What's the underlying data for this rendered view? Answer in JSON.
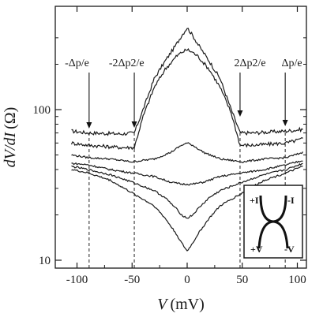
{
  "chart_data": {
    "type": "line",
    "xlabel": "V",
    "xunit": "(mV)",
    "ylabel": "dV/dI",
    "yunit": "(Ω)",
    "xlim": [
      -110,
      110
    ],
    "ylim": [
      10,
      400
    ],
    "yscale": "log",
    "xticks": [
      -100,
      -50,
      0,
      50,
      100
    ],
    "xtick_labels": [
      "-100",
      "-50",
      "0",
      "50",
      "100"
    ],
    "yticks": [
      10,
      100
    ],
    "ytick_labels": [
      "10",
      "100"
    ],
    "grid": false,
    "legend": "none",
    "vlines": [
      {
        "x": -89,
        "label": "-Δp/e",
        "label_x": -100
      },
      {
        "x": -48,
        "label": "-2Δp2/e",
        "label_x": -55
      },
      {
        "x": 48,
        "label": "2Δp2/e",
        "label_x": 57
      },
      {
        "x": 89,
        "label": "Δp/e",
        "label_x": 95
      }
    ],
    "series": [
      {
        "x": [
          -105,
          -90,
          -60,
          -48,
          -40,
          -30,
          -20,
          -10,
          -5,
          0,
          5,
          10,
          20,
          30,
          40,
          48,
          60,
          90,
          105
        ],
        "values": [
          72,
          70,
          69,
          70,
          100,
          160,
          210,
          270,
          310,
          350,
          310,
          270,
          210,
          160,
          100,
          70,
          70,
          72,
          74
        ]
      },
      {
        "x": [
          -105,
          -90,
          -60,
          -48,
          -40,
          -30,
          -20,
          -10,
          -5,
          0,
          5,
          10,
          20,
          30,
          40,
          48,
          60,
          90,
          105
        ],
        "values": [
          60,
          58,
          56,
          56,
          90,
          140,
          185,
          225,
          240,
          250,
          240,
          225,
          185,
          140,
          95,
          58,
          58,
          60,
          64
        ]
      },
      {
        "x": [
          -105,
          -90,
          -70,
          -50,
          -30,
          -15,
          -5,
          0,
          5,
          15,
          30,
          50,
          70,
          90,
          105
        ],
        "values": [
          50,
          48,
          47,
          45,
          47,
          52,
          58,
          60,
          58,
          52,
          47,
          45,
          47,
          48,
          52
        ]
      },
      {
        "x": [
          -105,
          -90,
          -70,
          -50,
          -30,
          -15,
          -5,
          0,
          5,
          15,
          30,
          50,
          70,
          90,
          105
        ],
        "values": [
          44,
          43,
          40,
          38,
          36,
          33,
          32,
          32,
          32,
          33,
          36,
          38,
          40,
          43,
          46
        ]
      },
      {
        "x": [
          -105,
          -90,
          -70,
          -50,
          -30,
          -20,
          -10,
          -5,
          0,
          5,
          10,
          20,
          30,
          50,
          70,
          90,
          105
        ],
        "values": [
          42,
          40,
          37,
          33,
          29,
          26,
          22,
          20,
          19,
          20,
          22,
          26,
          29,
          33,
          37,
          40,
          44
        ]
      },
      {
        "x": [
          -105,
          -90,
          -70,
          -50,
          -30,
          -20,
          -10,
          -5,
          0,
          5,
          10,
          20,
          30,
          50,
          70,
          90,
          105
        ],
        "values": [
          40,
          38,
          34,
          28,
          23,
          19,
          15,
          13,
          11.5,
          13,
          15,
          19,
          23,
          28,
          34,
          38,
          42
        ]
      }
    ]
  },
  "inset": {
    "labels": {
      "top_left": "+I",
      "top_right": "-I",
      "bottom_left": "+V",
      "bottom_right": "-V"
    }
  }
}
